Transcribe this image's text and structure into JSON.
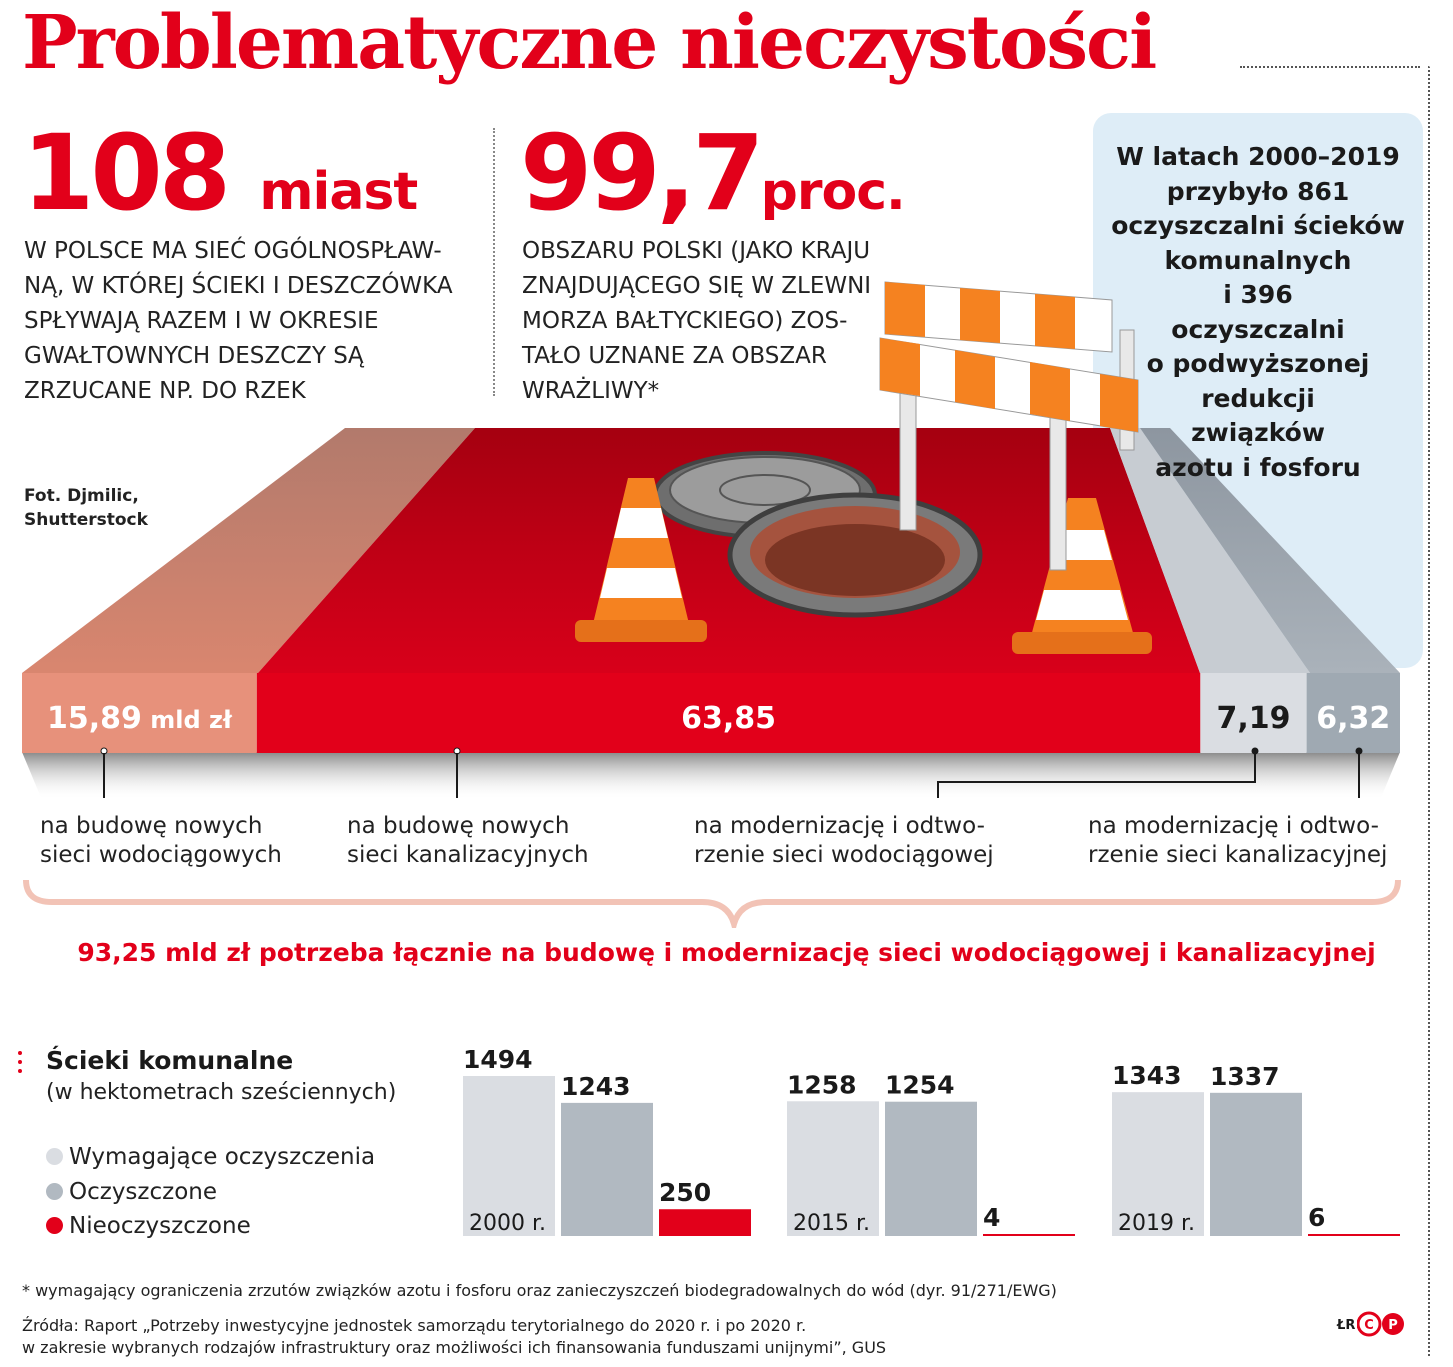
{
  "title": "Problematyczne nieczystości",
  "stats": {
    "left": {
      "number": "108",
      "unit": "miast",
      "text": "W POLSCE MA SIEĆ OGÓLNOSPŁAW-\nNĄ, W KTÓREJ ŚCIEKI I DESZCZÓWKA\nSPŁYWAJĄ RAZEM I W OKRESIE\nGWAŁTOWNYCH DESZCZY SĄ\nZRZUCANE NP. DO RZEK"
    },
    "middle": {
      "number": "99,7",
      "unit": "proc.",
      "text": "OBSZARU POLSKI (JAKO KRAJU\nZNAJDUJĄCEGO SIĘ W ZLEWNI\nMORZA BAŁTYCKIEGO) ZOS-\nTAŁO UZNANE ZA OBSZAR\nWRAŻLIWY*"
    },
    "box": "W latach 2000–2019\nprzybyło 861\noczyszczalni ścieków\nkomunalnych\ni 396\noczyszczalni\no podwyższonej\nredukcji\nzwiązków\nazotu i fosforu"
  },
  "photo_credit": "Fot. Djmilic,\nShutterstock",
  "colors": {
    "red": "#e2001a",
    "salmon": "#e7917b",
    "light_gray": "#dadde2",
    "mid_gray": "#9fa9b2",
    "blue_box": "#deedf7"
  },
  "chart_data": [
    {
      "type": "bar",
      "subtype": "stacked-horizontal",
      "unit": "mld zł",
      "categories": [
        "na budowę nowych sieci wodociągowych",
        "na budowę nowych sieci kanalizacyjnych",
        "na modernizację i odtworzenie sieci wodociągowej",
        "na modernizację i odtworzenie sieci kanalizacyjnej"
      ],
      "values": [
        15.89,
        63.85,
        7.19,
        6.32
      ],
      "value_labels": [
        "15,89",
        "63,85",
        "7,19",
        "6,32"
      ],
      "first_label_unit": "mld zł",
      "descriptions": [
        "na budowę nowych\nsieci wodociągowych",
        "na budowę nowych\nsieci kanalizacyjnych",
        "na modernizację i odtwo-\nrzenie sieci wodociągowej",
        "na modernizację i odtwo-\nrzenie sieci kanalizacyjnej"
      ],
      "colors": [
        "#e7917b",
        "#e2001a",
        "#dadde2",
        "#9fa9b2"
      ],
      "total_text": "93,25 mld zł potrzeba łącznie na budowę i modernizację sieci wodociągowej i kanalizacyjnej"
    },
    {
      "type": "bar",
      "title": "Ścieki komunalne",
      "subtitle": "(w hektometrach sześciennych)",
      "categories": [
        "2000 r.",
        "2015 r.",
        "2019 r."
      ],
      "series": [
        {
          "name": "Wymagające oczyszczenia",
          "color": "#dadde2",
          "values": [
            1494,
            1258,
            1343
          ]
        },
        {
          "name": "Oczyszczone",
          "color": "#b1b9c1",
          "values": [
            1243,
            1254,
            1337
          ]
        },
        {
          "name": "Nieoczyszczone",
          "color": "#e2001a",
          "values": [
            250,
            4,
            6
          ]
        }
      ],
      "ylim": [
        0,
        1494
      ],
      "legend_position": "left"
    }
  ],
  "footnote": "* wymagający ograniczenia zrzutów związków azotu i fosforu oraz zanieczyszczeń biodegradowalnych do wód (dyr. 91/271/EWG)",
  "sources": "Źródła: Raport „Potrzeby inwestycyjne jednostek samorządu terytorialnego do 2020 r. i po 2020 r.\nw zakresie wybranych rodzajów infrastruktury oraz możliwości ich finansowania funduszami unijnymi”, GUS",
  "author": "ŁR",
  "logo": "CP"
}
